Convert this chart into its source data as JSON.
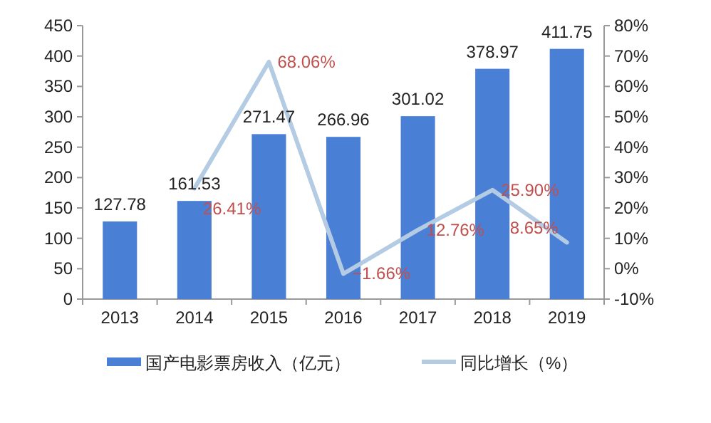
{
  "chart_data": {
    "type": "bar",
    "categories": [
      "2013",
      "2014",
      "2015",
      "2016",
      "2017",
      "2018",
      "2019"
    ],
    "series": [
      {
        "name": "国产电影票房收入（亿元）",
        "color": "#4a7fd6",
        "values": [
          127.78,
          161.53,
          271.47,
          266.96,
          301.02,
          378.97,
          411.75
        ]
      },
      {
        "name": "同比增长（%）",
        "type": "line",
        "axis": "y2",
        "color": "#b3cbe3",
        "values": [
          null,
          26.41,
          68.06,
          -1.66,
          12.76,
          25.9,
          8.65
        ],
        "value_labels": [
          null,
          "26.41%",
          "68.06%",
          "−1.66%",
          "12.76%",
          "25.90%",
          "8.65%"
        ]
      }
    ],
    "data_labels": true,
    "ylim": [
      0,
      450
    ],
    "yticks": [
      0,
      50,
      100,
      150,
      200,
      250,
      300,
      350,
      400,
      450
    ],
    "y2lim": [
      -10,
      80
    ],
    "y2ticks": [
      {
        "value": -10,
        "label": "-10%"
      },
      {
        "value": 0,
        "label": "0%"
      },
      {
        "value": 10,
        "label": "10%"
      },
      {
        "value": 20,
        "label": "20%"
      },
      {
        "value": 30,
        "label": "30%"
      },
      {
        "value": 40,
        "label": "40%"
      },
      {
        "value": 50,
        "label": "50%"
      },
      {
        "value": 60,
        "label": "60%"
      },
      {
        "value": 70,
        "label": "70%"
      },
      {
        "value": 80,
        "label": "80%"
      }
    ],
    "legend": "bottom",
    "grid": false,
    "marker": "none",
    "line_style": "solid"
  }
}
